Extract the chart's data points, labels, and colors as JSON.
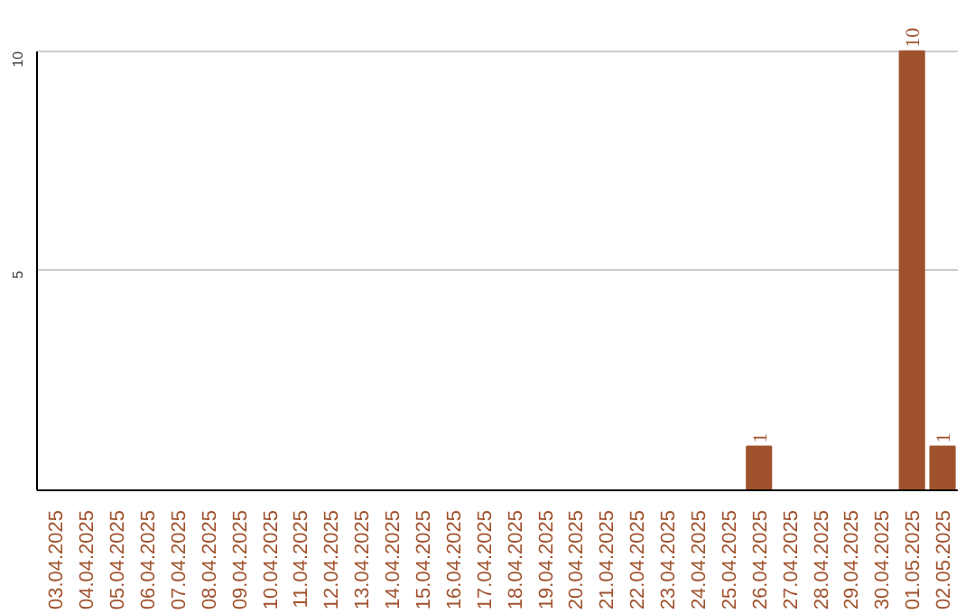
{
  "chart_data": {
    "type": "bar",
    "categories": [
      "03.04.2025",
      "04.04.2025",
      "05.04.2025",
      "06.04.2025",
      "07.04.2025",
      "08.04.2025",
      "09.04.2025",
      "10.04.2025",
      "11.04.2025",
      "12.04.2025",
      "13.04.2025",
      "14.04.2025",
      "15.04.2025",
      "16.04.2025",
      "17.04.2025",
      "18.04.2025",
      "19.04.2025",
      "20.04.2025",
      "21.04.2025",
      "22.04.2025",
      "23.04.2025",
      "24.04.2025",
      "25.04.2025",
      "26.04.2025",
      "27.04.2025",
      "28.04.2025",
      "29.04.2025",
      "30.04.2025",
      "01.05.2025",
      "02.05.2025"
    ],
    "values": [
      0,
      0,
      0,
      0,
      0,
      0,
      0,
      0,
      0,
      0,
      0,
      0,
      0,
      0,
      0,
      0,
      0,
      0,
      0,
      0,
      0,
      0,
      0,
      1,
      0,
      0,
      0,
      0,
      10,
      1
    ],
    "value_labels": [
      null,
      null,
      null,
      null,
      null,
      null,
      null,
      null,
      null,
      null,
      null,
      null,
      null,
      null,
      null,
      null,
      null,
      null,
      null,
      null,
      null,
      null,
      null,
      "1",
      null,
      null,
      null,
      null,
      "10",
      "1"
    ],
    "color": "#a0522d",
    "ylim": [
      0,
      10
    ],
    "yticks": [
      5,
      10
    ],
    "grid": "y"
  }
}
